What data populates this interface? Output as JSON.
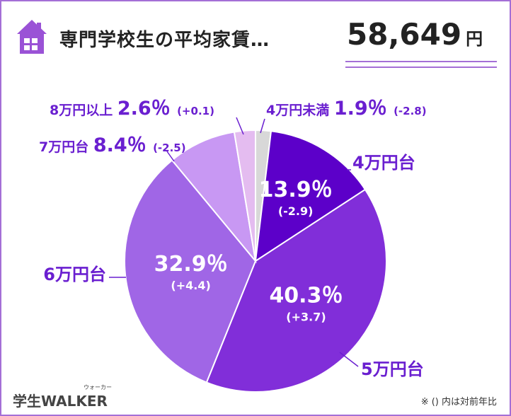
{
  "header": {
    "title": "専門学校生の平均家賃…",
    "average_rent": "58,649",
    "unit": "円"
  },
  "chart_data": {
    "type": "pie",
    "slices": [
      {
        "label": "4万円未満",
        "value": 1.9,
        "value_text": "1.9％",
        "change": "(-2.8)",
        "color": "#d8d8d8"
      },
      {
        "label": "4万円台",
        "value": 13.9,
        "value_text": "13.9％",
        "change": "(-2.9)",
        "color": "#5c00c9"
      },
      {
        "label": "5万円台",
        "value": 40.3,
        "value_text": "40.3％",
        "change": "(+3.7)",
        "color": "#812ed9"
      },
      {
        "label": "6万円台",
        "value": 32.9,
        "value_text": "32.9％",
        "change": "(+4.4)",
        "color": "#a066e6"
      },
      {
        "label": "7万円台",
        "value": 8.4,
        "value_text": "8.4％",
        "change": "(-2.5)",
        "color": "#c898f3"
      },
      {
        "label": "8万円以上",
        "value": 2.6,
        "value_text": "2.6％",
        "change": "(+0.1)",
        "color": "#e4bcf0"
      }
    ]
  },
  "footnote": "※ () 内は対前年比",
  "logo": {
    "text": "学生WALKER",
    "sub": "ウォーカー"
  },
  "colors": {
    "accent": "#6a1fd0",
    "frame": "#a46fd6",
    "house": "#9a52d6"
  }
}
